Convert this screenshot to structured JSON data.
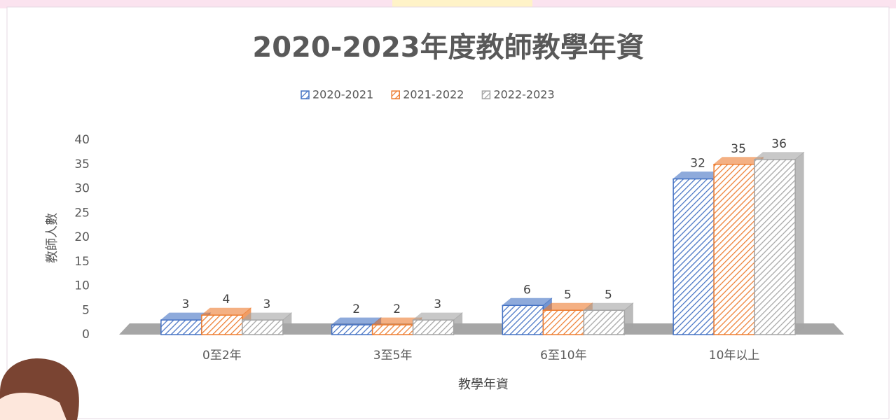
{
  "chart_data": {
    "type": "bar3d",
    "title": "2020-2023年度教師教學年資",
    "x_label": "教學年資",
    "y_label": "教師人數",
    "categories": [
      "0至2年",
      "3至5年",
      "6至10年",
      "10年以上"
    ],
    "series": [
      {
        "name": "2020-2021",
        "color": "#4472c4",
        "values": [
          3,
          2,
          6,
          32
        ]
      },
      {
        "name": "2021-2022",
        "color": "#ed7d31",
        "values": [
          4,
          2,
          5,
          35
        ]
      },
      {
        "name": "2022-2023",
        "color": "#a5a5a5",
        "values": [
          3,
          3,
          5,
          36
        ]
      }
    ],
    "ylim": [
      0,
      40
    ],
    "yticks": [
      0,
      5,
      10,
      15,
      20,
      25,
      30,
      35,
      40
    ],
    "legend": "top",
    "grid": false
  }
}
